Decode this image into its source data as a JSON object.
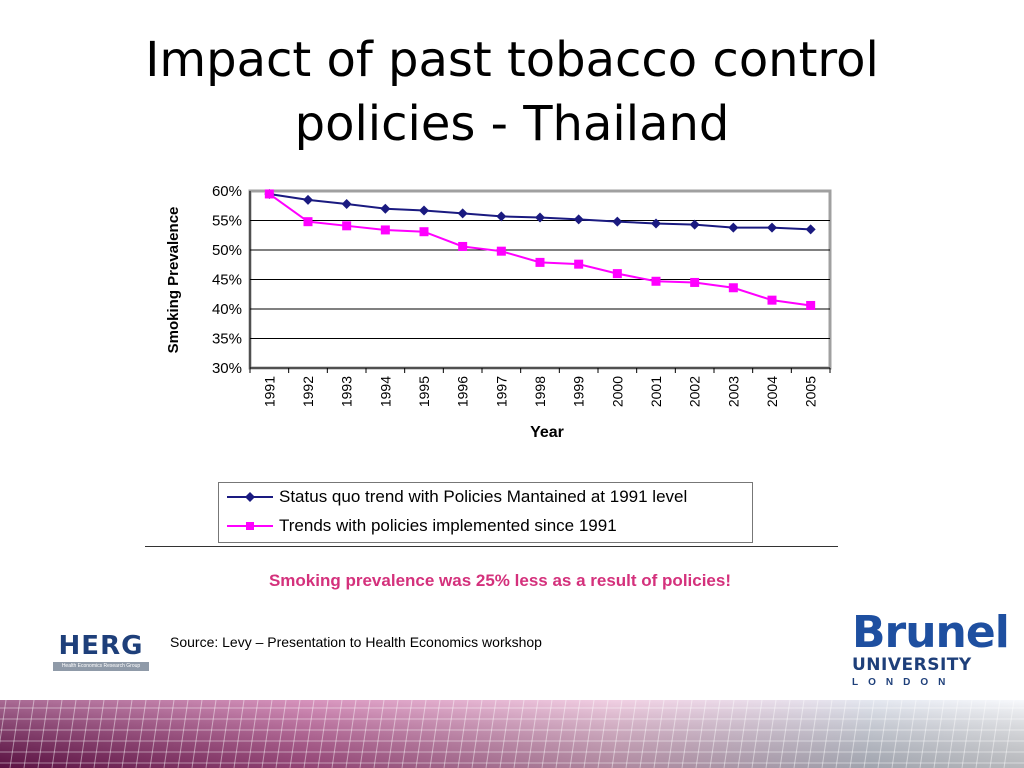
{
  "slide": {
    "title_line1": "Impact of past tobacco control",
    "title_line2": "policies - Thailand",
    "callout": "Smoking prevalence was 25% less as a result of policies!",
    "source": "Source: Levy – Presentation to Health Economics workshop"
  },
  "logos": {
    "herg": {
      "word": "HERG",
      "subtitle": "Health Economics Research Group"
    },
    "brunel": {
      "word": "Brunel",
      "university": "UNIVERSITY",
      "city": "LONDON"
    }
  },
  "colors": {
    "status_quo": "#1a1a80",
    "policies": "#ff00ff",
    "callout": "#d4317c",
    "brand_blue": "#1e4fa0"
  },
  "chart_data": {
    "type": "line",
    "xlabel": "Year",
    "ylabel": "Smoking Prevalence",
    "x": [
      "1991",
      "1992",
      "1993",
      "1994",
      "1995",
      "1996",
      "1997",
      "1998",
      "1999",
      "2000",
      "2001",
      "2002",
      "2003",
      "2004",
      "2005"
    ],
    "ylim": [
      0.3,
      0.6
    ],
    "yticks": [
      "30%",
      "35%",
      "40%",
      "45%",
      "50%",
      "55%",
      "60%"
    ],
    "grid": true,
    "legend_position": "bottom",
    "series": [
      {
        "name": "Status quo trend with Policies Mantained at 1991 level",
        "marker": "diamond",
        "values": [
          0.595,
          0.585,
          0.578,
          0.57,
          0.567,
          0.562,
          0.557,
          0.555,
          0.552,
          0.548,
          0.545,
          0.543,
          0.538,
          0.538,
          0.535
        ]
      },
      {
        "name": "Trends with policies implemented since 1991",
        "marker": "square",
        "values": [
          0.595,
          0.548,
          0.541,
          0.534,
          0.531,
          0.506,
          0.498,
          0.479,
          0.476,
          0.46,
          0.447,
          0.445,
          0.436,
          0.415,
          0.406
        ]
      }
    ]
  }
}
